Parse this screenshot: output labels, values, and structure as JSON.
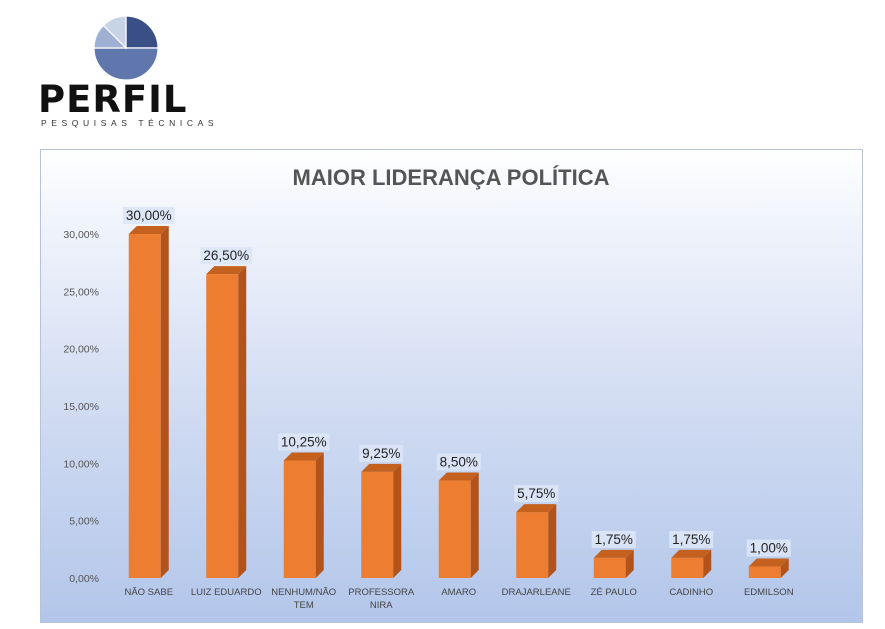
{
  "logo": {
    "name": "PERFIL",
    "tagline": "PESQUISAS TÉCNICAS",
    "colors": [
      "#3a4f86",
      "#5f77ad",
      "#9fb0d4",
      "#c9d3e6"
    ]
  },
  "chart_data": {
    "type": "bar",
    "title": "MAIOR LIDERANÇA POLÍTICA",
    "categories": [
      "NÃO SABE",
      "LUIZ EDUARDO",
      "NENHUM/NÃO TEM",
      "PROFESSORA NIRA",
      "AMARO",
      "DRAJARLEANE",
      "ZÉ PAULO",
      "CADINHO",
      "EDMILSON"
    ],
    "category_lines": [
      [
        "NÃO SABE"
      ],
      [
        "LUIZ EDUARDO"
      ],
      [
        "NENHUM/NÃO",
        "TEM"
      ],
      [
        "PROFESSORA",
        "NIRA"
      ],
      [
        "AMARO"
      ],
      [
        "DRAJARLEANE"
      ],
      [
        "ZÉ PAULO"
      ],
      [
        "CADINHO"
      ],
      [
        "EDMILSON"
      ]
    ],
    "values": [
      30.0,
      26.5,
      10.25,
      9.25,
      8.5,
      5.75,
      1.75,
      1.75,
      1.0
    ],
    "data_labels": [
      "30,00%",
      "26,50%",
      "10,25%",
      "9,25%",
      "8,50%",
      "5,75%",
      "1,75%",
      "1,75%",
      "1,00%"
    ],
    "y_ticks": [
      0,
      5,
      10,
      15,
      20,
      25,
      30
    ],
    "y_tick_labels": [
      "0,00%",
      "5,00%",
      "10,00%",
      "15,00%",
      "20,00%",
      "25,00%",
      "30,00%"
    ],
    "ylim": [
      0,
      30
    ],
    "xlabel": "",
    "ylabel": "",
    "grid": false,
    "legend": "none",
    "bar_color": "#ed7d31",
    "bar_side_color": "#b3531c",
    "bar_top_color": "#c4611f"
  }
}
